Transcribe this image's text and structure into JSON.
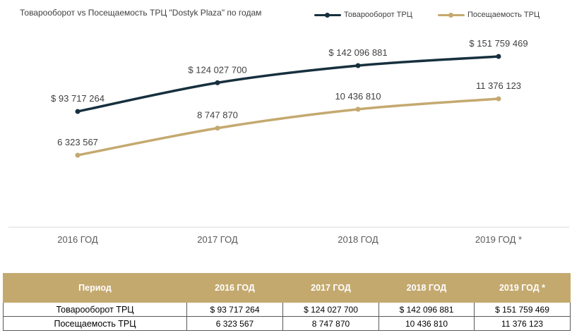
{
  "chart_data": {
    "type": "line",
    "title": "Товарооборот vs Посещаемость ТРЦ \"Dostyk Plaza\" по годам",
    "categories": [
      "2016 ГОД",
      "2017 ГОД",
      "2018 ГОД",
      "2019 ГОД *"
    ],
    "series": [
      {
        "name": "Товарооборот ТРЦ",
        "values": [
          93717264,
          124027700,
          142096881,
          151759469
        ],
        "labels": [
          "$ 93 717 264",
          "$ 124 027 700",
          "$ 142 096 881",
          "$ 151 759 469"
        ],
        "color": "#17303e"
      },
      {
        "name": "Посещаемость ТРЦ",
        "values": [
          6323567,
          8747870,
          10436810,
          11376123
        ],
        "labels": [
          "6 323 567",
          "8 747 870",
          "10 436 810",
          "11 376 123"
        ],
        "color": "#c4a96f"
      }
    ],
    "legend_position": "top-right",
    "grid": false
  },
  "table": {
    "header": [
      "Период",
      "2016 ГОД",
      "2017 ГОД",
      "2018 ГОД",
      "2019 ГОД *"
    ],
    "rows": [
      {
        "label": "Товарооборот ТРЦ",
        "cells": [
          "$ 93 717 264",
          "$ 124 027 700",
          "$ 142 096 881",
          "$ 151 759 469"
        ]
      },
      {
        "label": "Посещаемость ТРЦ",
        "cells": [
          "6 323 567",
          "8 747 870",
          "10 436 810",
          "11 376 123"
        ]
      }
    ]
  }
}
